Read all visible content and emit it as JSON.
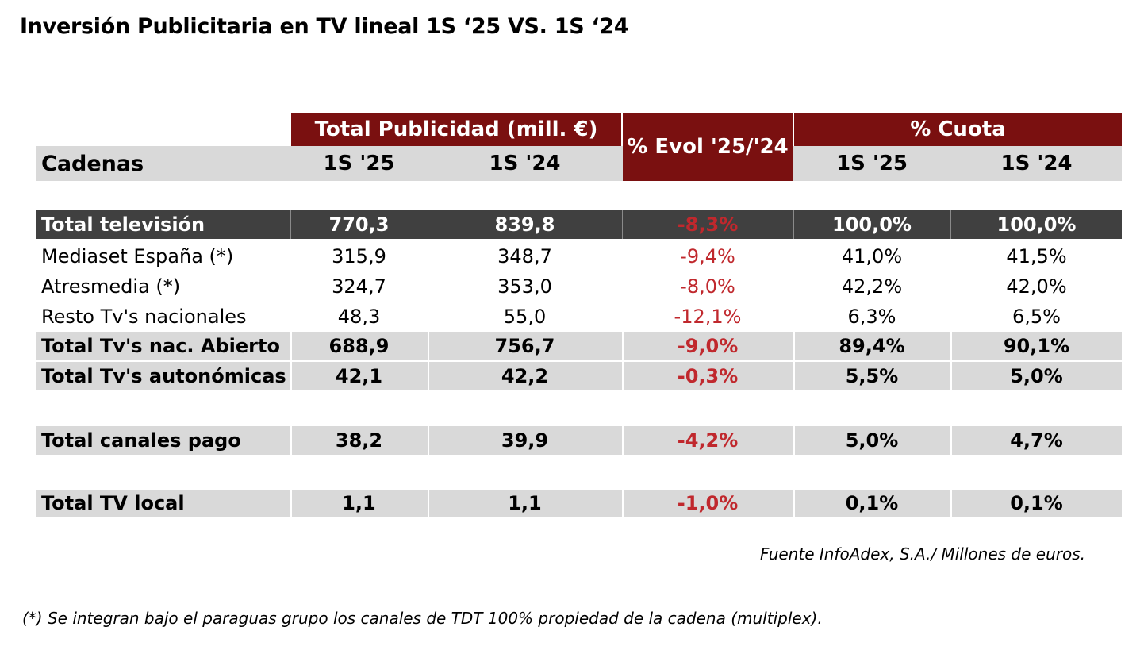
{
  "title": "Inversión Publicitaria en TV lineal 1S ‘25 VS. 1S ‘24",
  "colors": {
    "header_red": "#7a1010",
    "total_dark": "#404040",
    "band_grey": "#d9d9d9",
    "negative_red": "#c0282d"
  },
  "chart_data": {
    "type": "table",
    "group_headers": {
      "total": "Total Publicidad (mill. €)",
      "evol": "% Evol '25/'24",
      "cuota": "% Cuota"
    },
    "columns": {
      "cadenas": "Cadenas",
      "tp_25": "1S '25",
      "tp_24": "1S '24",
      "cu_25": "1S '25",
      "cu_24": "1S '24"
    },
    "rows": [
      {
        "label": "Total televisión",
        "v25": "770,3",
        "v24": "839,8",
        "evol": "-8,3%",
        "c25": "100,0%",
        "c24": "100,0%",
        "style": "dark"
      },
      {
        "label": "Mediaset España (*)",
        "v25": "315,9",
        "v24": "348,7",
        "evol": "-9,4%",
        "c25": "41,0%",
        "c24": "41,5%",
        "style": "plain"
      },
      {
        "label": "Atresmedia (*)",
        "v25": "324,7",
        "v24": "353,0",
        "evol": "-8,0%",
        "c25": "42,2%",
        "c24": "42,0%",
        "style": "plain"
      },
      {
        "label": "Resto Tv's nacionales",
        "v25": "48,3",
        "v24": "55,0",
        "evol": "-12,1%",
        "c25": "6,3%",
        "c24": "6,5%",
        "style": "plain"
      },
      {
        "label": "Total Tv's nac. Abierto",
        "v25": "688,9",
        "v24": "756,7",
        "evol": "-9,0%",
        "c25": "89,4%",
        "c24": "90,1%",
        "style": "grey"
      },
      {
        "label": "Total Tv's autonómicas",
        "v25": "42,1",
        "v24": "42,2",
        "evol": "-0,3%",
        "c25": "5,5%",
        "c24": "5,0%",
        "style": "grey"
      },
      {
        "label": "Total canales pago",
        "v25": "38,2",
        "v24": "39,9",
        "evol": "-4,2%",
        "c25": "5,0%",
        "c24": "4,7%",
        "style": "grey"
      },
      {
        "label": "Total TV local",
        "v25": "1,1",
        "v24": "1,1",
        "evol": "-1,0%",
        "c25": "0,1%",
        "c24": "0,1%",
        "style": "grey"
      }
    ]
  },
  "source": "Fuente InfoAdex, S.A./ Millones de euros.",
  "footnote": "(*) Se integran bajo el paraguas grupo los canales de TDT 100% propiedad de la cadena (multiplex)."
}
